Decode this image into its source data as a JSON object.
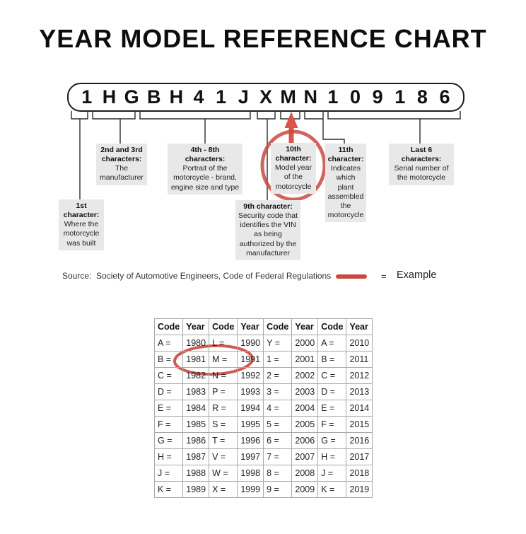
{
  "title": "YEAR MODEL REFERENCE CHART",
  "vin": {
    "characters": [
      "1",
      "H",
      "G",
      "B",
      "H",
      "4",
      "1",
      "J",
      "X",
      "M",
      "N",
      "1",
      "0",
      "9",
      "1",
      "8",
      "6"
    ]
  },
  "callouts": {
    "first_char": {
      "header": "1st character:",
      "body": "Where the motorcycle was built"
    },
    "second_third_chars": {
      "header": "2nd and 3rd characters:",
      "body": "The manufacturer"
    },
    "fourth_eighth_chars": {
      "header": "4th - 8th characters:",
      "body": "Portrait of the motorcycle - brand, engine size and type"
    },
    "ninth_char": {
      "header": "9th character:",
      "body": "Security code that identifies the VIN as being authorized by the manufacturer"
    },
    "tenth_char": {
      "header": "10th character:",
      "body": "Model year of the motorcycle",
      "circled": true
    },
    "eleventh_char": {
      "header": "11th character:",
      "body": "Indicates which plant assembled the motorcycle"
    },
    "last_six_chars": {
      "header": "Last 6 characters:",
      "body": "Serial number of the motorcycle"
    }
  },
  "source_line": "Source:  Society of Automotive Engineers, Code of Federal Regulations",
  "legend": {
    "equals_sign": "=",
    "label": "Example"
  },
  "colors": {
    "example_red": "#c9493f",
    "arrow_red": "#d9544a",
    "callout_bg": "#e8e8e8",
    "table_border": "#a8a8a8"
  },
  "chart_data": {
    "type": "table",
    "headers": [
      "Code",
      "Year",
      "Code",
      "Year",
      "Code",
      "Year",
      "Code",
      "Year"
    ],
    "rows": [
      [
        "A =",
        "1980",
        "L =",
        "1990",
        "Y =",
        "2000",
        "A =",
        "2010"
      ],
      [
        "B =",
        "1981",
        "M =",
        "1991",
        "1 =",
        "2001",
        "B =",
        "2011"
      ],
      [
        "C =",
        "1982",
        "N =",
        "1992",
        "2 =",
        "2002",
        "C =",
        "2012"
      ],
      [
        "D =",
        "1983",
        "P =",
        "1993",
        "3 =",
        "2003",
        "D =",
        "2013"
      ],
      [
        "E =",
        "1984",
        "R =",
        "1994",
        "4 =",
        "2004",
        "E =",
        "2014"
      ],
      [
        "F =",
        "1985",
        "S =",
        "1995",
        "5 =",
        "2005",
        "F =",
        "2015"
      ],
      [
        "G =",
        "1986",
        "T =",
        "1996",
        "6 =",
        "2006",
        "G =",
        "2016"
      ],
      [
        "H =",
        "1987",
        "V =",
        "1997",
        "7 =",
        "2007",
        "H =",
        "2017"
      ],
      [
        "J =",
        "1988",
        "W =",
        "1998",
        "8 =",
        "2008",
        "J =",
        "2018"
      ],
      [
        "K =",
        "1989",
        "X =",
        "1999",
        "9 =",
        "2009",
        "K =",
        "2019"
      ]
    ],
    "circled": {
      "row_index": 1,
      "col_indexes": [
        2,
        3
      ],
      "cells_text": "M = 1991"
    }
  }
}
